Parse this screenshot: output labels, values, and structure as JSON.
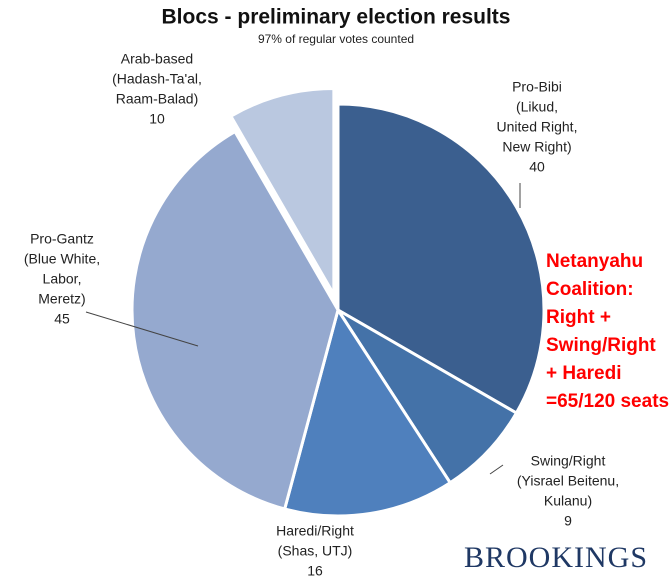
{
  "chart_data": {
    "type": "pie",
    "title": "Blocs - preliminary election results",
    "subtitle": "97% of regular votes counted",
    "categories": [
      "Pro-Bibi",
      "Swing/Right",
      "Haredi/Right",
      "Pro-Gantz",
      "Arab-based"
    ],
    "category_details": [
      [
        "(Likud,",
        "United Right,",
        "New Right)"
      ],
      [
        "(Yisrael Beitenu,",
        "Kulanu)"
      ],
      [
        "(Shas, UTJ)"
      ],
      [
        "(Blue White,",
        "Labor,",
        "Meretz)"
      ],
      [
        "(Hadash-Ta'al,",
        "Raam-Balad)"
      ]
    ],
    "values": [
      40,
      9,
      16,
      45,
      10
    ],
    "colors": [
      "#3b5f8f",
      "#4472a8",
      "#4f80bd",
      "#95a9cf",
      "#bac8e0"
    ],
    "exploded": [
      "Arab-based"
    ],
    "annotation": [
      "Netanyahu",
      "Coalition:",
      "Right +",
      "Swing/Right",
      "+ Haredi",
      "=65/120 seats"
    ],
    "annotation_color": "#ff0000",
    "source": "BROOKINGS"
  }
}
